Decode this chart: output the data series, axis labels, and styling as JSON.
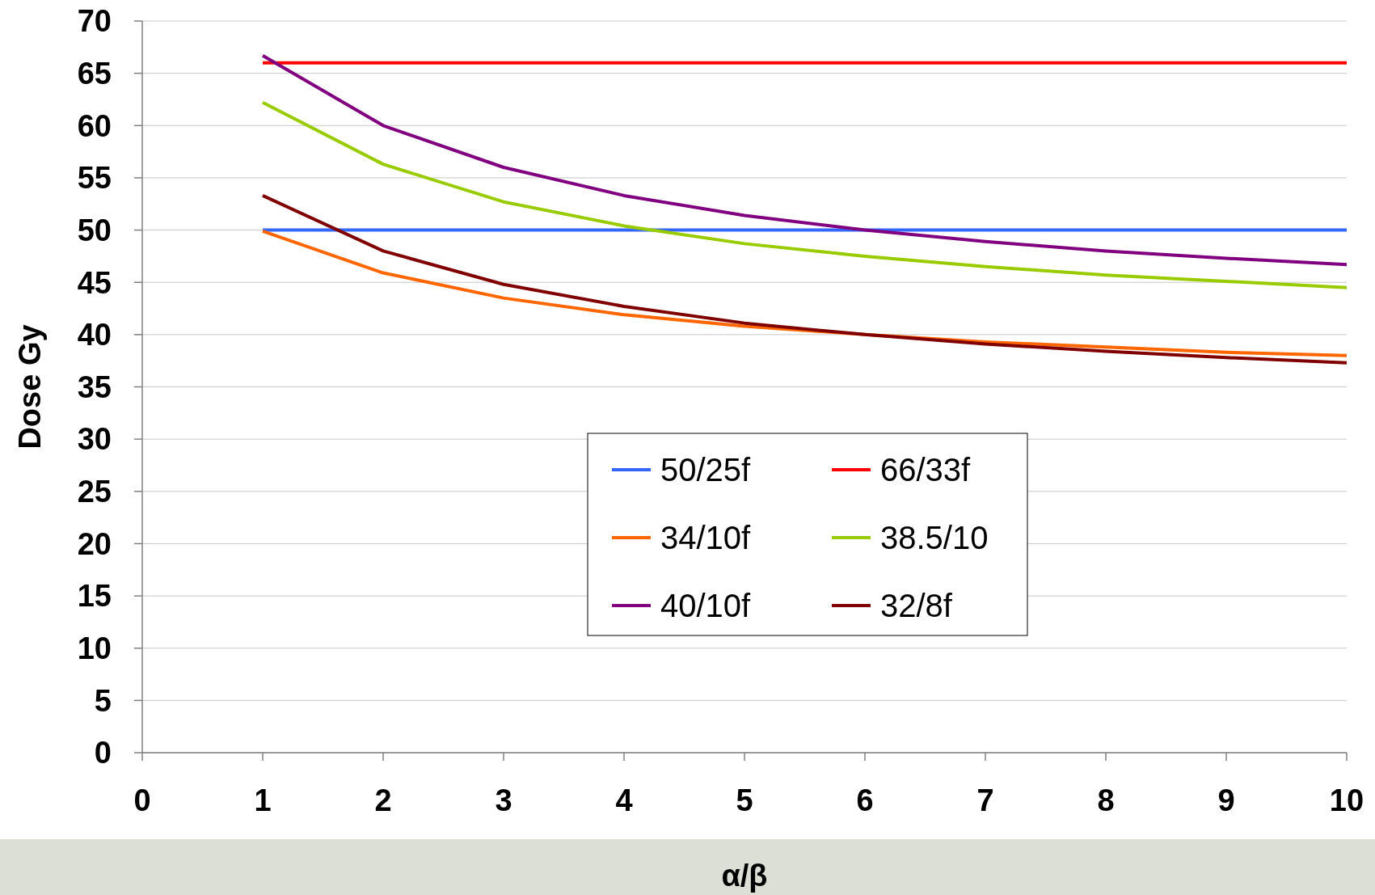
{
  "chart_data": {
    "type": "line",
    "xlabel": "α/β",
    "ylabel": "Dose Gy",
    "x": [
      1,
      2,
      3,
      4,
      5,
      6,
      7,
      8,
      9,
      10
    ],
    "xlim": [
      0,
      10
    ],
    "xticks": [
      0,
      1,
      2,
      3,
      4,
      5,
      6,
      7,
      8,
      9,
      10
    ],
    "ylim": [
      0,
      70
    ],
    "yticks": [
      0,
      5,
      10,
      15,
      20,
      25,
      30,
      35,
      40,
      45,
      50,
      55,
      60,
      65,
      70
    ],
    "grid": "y",
    "legend": "center",
    "marker": "none",
    "line_style": "solid",
    "series": [
      {
        "name": "50/25f",
        "color": "#3366ff",
        "values": [
          50,
          50,
          50,
          50,
          50,
          50,
          50,
          50,
          50,
          50
        ]
      },
      {
        "name": "66/33f",
        "color": "#ff0000",
        "values": [
          66,
          66,
          66,
          66,
          66,
          66,
          66,
          66,
          66,
          66
        ]
      },
      {
        "name": "34/10f",
        "color": "#ff6600",
        "values": [
          49.9,
          45.9,
          43.5,
          41.9,
          40.8,
          40,
          39.3,
          38.8,
          38.3,
          38
        ]
      },
      {
        "name": "38.5/10",
        "color": "#99cc00",
        "values": [
          62.2,
          56.3,
          52.7,
          50.4,
          48.7,
          47.5,
          46.5,
          45.7,
          45.1,
          44.5
        ]
      },
      {
        "name": "40/10f",
        "color": "#800080",
        "values": [
          66.7,
          60,
          56,
          53.3,
          51.4,
          50,
          48.9,
          48,
          47.3,
          46.7
        ]
      },
      {
        "name": "32/8f",
        "color": "#800000",
        "values": [
          53.3,
          48,
          44.8,
          42.7,
          41.1,
          40,
          39.1,
          38.4,
          37.8,
          37.3
        ]
      }
    ]
  }
}
